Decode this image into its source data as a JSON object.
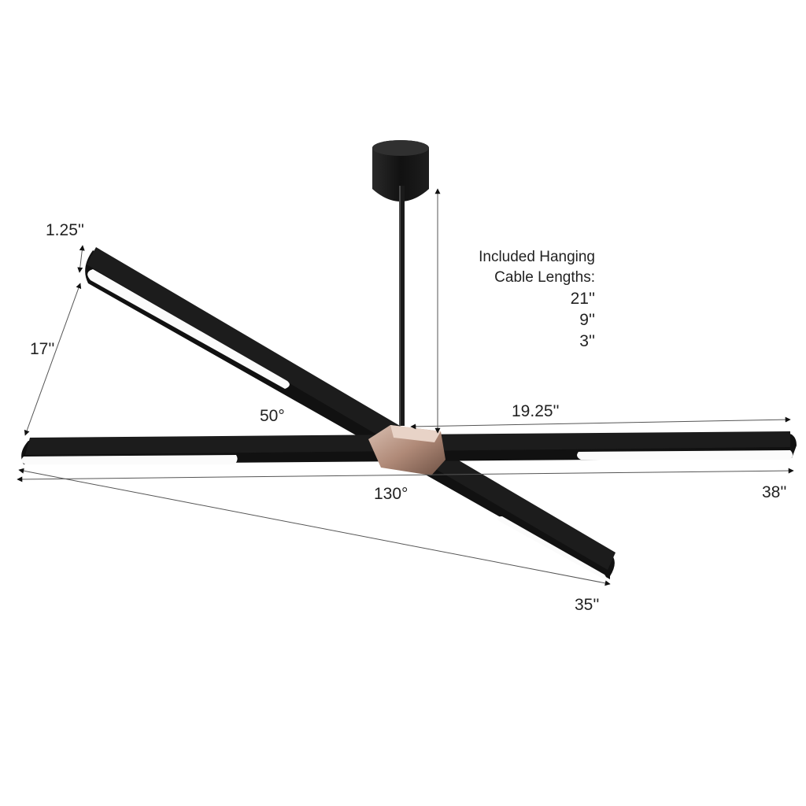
{
  "colors": {
    "fixture": "#1c1c1c",
    "fixture_edge": "#000000",
    "diffuser": "#fbfbfb",
    "hub": "#b08a78",
    "dimension_line": "#555555",
    "text": "#222222"
  },
  "dimensions": {
    "profile_height": "1.25''",
    "bar_depth": "17''",
    "small_angle": "50°",
    "arm_length": "19.25''",
    "large_angle": "130°",
    "overall_width": "38''",
    "diagonal_span": "35''"
  },
  "cable": {
    "heading_line1": "Included Hanging",
    "heading_line2": "Cable Lengths:",
    "lengths": [
      "21''",
      "9''",
      "3''"
    ]
  }
}
